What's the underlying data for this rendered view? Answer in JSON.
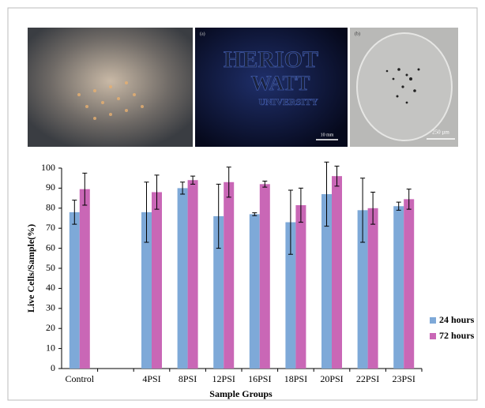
{
  "figure": {
    "panel_a_label": "(a)",
    "panel_b_label": "(b)",
    "logo_text": [
      "HERIOT",
      "WATT",
      "UNIVERSITY"
    ],
    "scale_a": "10 mm",
    "scale_b": "250 µm"
  },
  "chart_data": {
    "type": "bar",
    "y_label": "Live Cells/Sample(%)",
    "x_label": "Sample Groups",
    "categories": [
      "Control",
      null,
      "4PSI",
      "8PSI",
      "12PSI",
      "16PSI",
      "18PSI",
      "20PSI",
      "22PSI",
      "23PSI"
    ],
    "series": [
      {
        "name": "24 hours",
        "color": "#7ea9d8",
        "values": [
          78,
          null,
          78,
          90,
          76,
          77,
          73,
          87,
          79,
          81
        ],
        "errors": [
          6,
          null,
          15,
          3,
          16,
          0.7,
          16,
          16,
          16,
          2
        ]
      },
      {
        "name": "72 hours",
        "color": "#c967b6",
        "values": [
          89.5,
          null,
          88,
          94,
          93,
          92,
          81.5,
          96,
          80,
          84.5
        ],
        "errors": [
          8,
          null,
          8.5,
          2,
          7.5,
          1.5,
          8.5,
          5,
          8,
          5
        ]
      }
    ],
    "ylim": [
      0,
      100
    ],
    "yticks": [
      0,
      10,
      20,
      30,
      40,
      50,
      60,
      70,
      80,
      90,
      100
    ],
    "grid": false,
    "legend": "right"
  }
}
